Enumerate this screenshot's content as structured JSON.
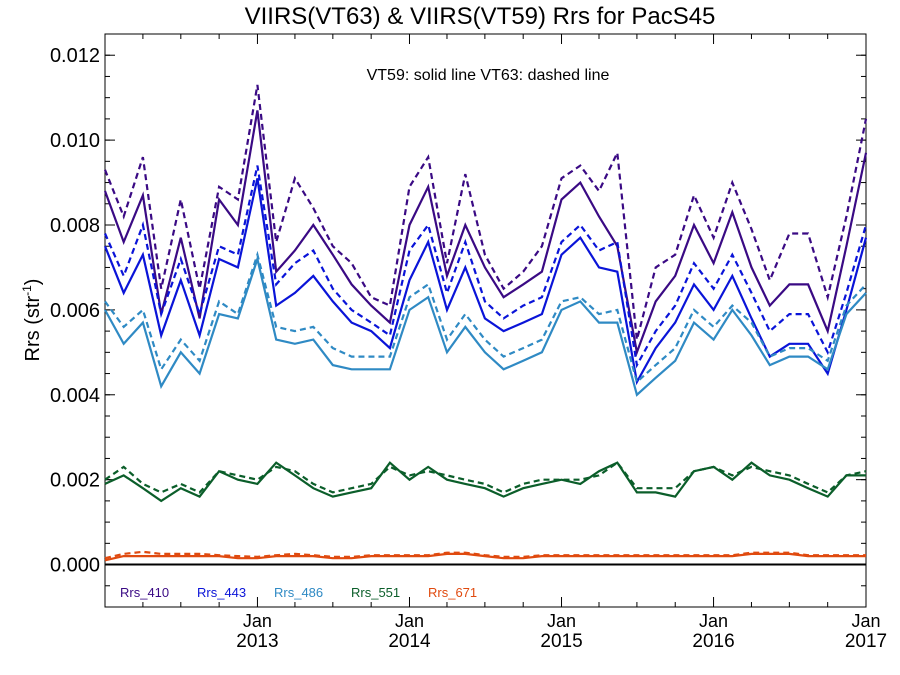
{
  "chart_data": {
    "type": "line",
    "title": "VIIRS(VT63) & VIIRS(VT59)  Rrs for PacS45",
    "ylabel": "Rrs (str",
    "ylabel_sup": "-1",
    "ylabel_close": ")",
    "ylim": [
      -0.001,
      0.0125
    ],
    "yticks": [
      0.0,
      0.002,
      0.004,
      0.006,
      0.008,
      0.01,
      0.012
    ],
    "ytick_labels": [
      "0.000",
      "0.002",
      "0.004",
      "0.006",
      "0.008",
      "0.010",
      "0.012"
    ],
    "xlim": [
      "2012-01-01",
      "2017-01-01"
    ],
    "xticks": [
      {
        "date": "2013-01-01",
        "month": "Jan",
        "year": "2013"
      },
      {
        "date": "2014-01-01",
        "month": "Jan",
        "year": "2014"
      },
      {
        "date": "2015-01-01",
        "month": "Jan",
        "year": "2015"
      },
      {
        "date": "2016-01-01",
        "month": "Jan",
        "year": "2016"
      },
      {
        "date": "2017-01-01",
        "month": "Jan",
        "year": "2017"
      }
    ],
    "annotation": "VT59: solid line   VT63: dashed line",
    "grid": false,
    "legend_position": "bottom-left",
    "x": [
      "2012-01-01",
      "2012-02-15",
      "2012-04-01",
      "2012-05-15",
      "2012-07-01",
      "2012-08-15",
      "2012-10-01",
      "2012-11-15",
      "2013-01-01",
      "2013-02-15",
      "2013-04-01",
      "2013-05-15",
      "2013-07-01",
      "2013-08-15",
      "2013-10-01",
      "2013-11-15",
      "2014-01-01",
      "2014-02-15",
      "2014-04-01",
      "2014-05-15",
      "2014-07-01",
      "2014-08-15",
      "2014-10-01",
      "2014-11-15",
      "2015-01-01",
      "2015-02-15",
      "2015-04-01",
      "2015-05-15",
      "2015-07-01",
      "2015-08-15",
      "2015-10-01",
      "2015-11-15",
      "2016-01-01",
      "2016-02-15",
      "2016-04-01",
      "2016-05-15",
      "2016-07-01",
      "2016-08-15",
      "2016-10-01",
      "2016-11-15",
      "2017-01-01"
    ],
    "series": [
      {
        "name": "Rrs_410",
        "color": "#3a0a84",
        "vt59": [
          0.0088,
          0.0076,
          0.0087,
          0.0059,
          0.0077,
          0.0058,
          0.0086,
          0.008,
          0.0107,
          0.0069,
          0.0074,
          0.008,
          0.0073,
          0.0066,
          0.0061,
          0.0057,
          0.008,
          0.0089,
          0.0068,
          0.008,
          0.007,
          0.0063,
          0.0066,
          0.0069,
          0.0086,
          0.009,
          0.0082,
          0.0075,
          0.005,
          0.0062,
          0.0068,
          0.008,
          0.0071,
          0.0083,
          0.007,
          0.0061,
          0.0066,
          0.0066,
          0.0055,
          0.0075,
          0.0097
        ],
        "vt63": [
          0.0093,
          0.0082,
          0.0096,
          0.0065,
          0.0086,
          0.0065,
          0.0089,
          0.0086,
          0.0113,
          0.0076,
          0.0091,
          0.0084,
          0.0075,
          0.0071,
          0.0063,
          0.0061,
          0.0089,
          0.0096,
          0.0071,
          0.0092,
          0.0073,
          0.0065,
          0.0069,
          0.0075,
          0.0091,
          0.0094,
          0.0088,
          0.0097,
          0.0053,
          0.007,
          0.0073,
          0.0087,
          0.0077,
          0.009,
          0.0079,
          0.0067,
          0.0078,
          0.0078,
          0.0063,
          0.0082,
          0.0105
        ]
      },
      {
        "name": "Rrs_443",
        "color": "#0a14d8",
        "vt59": [
          0.0075,
          0.0064,
          0.0073,
          0.0054,
          0.0067,
          0.0054,
          0.0072,
          0.007,
          0.0091,
          0.0061,
          0.0064,
          0.0068,
          0.0062,
          0.0057,
          0.0055,
          0.0051,
          0.0067,
          0.0076,
          0.006,
          0.007,
          0.0058,
          0.0055,
          0.0057,
          0.0059,
          0.0073,
          0.0077,
          0.007,
          0.0069,
          0.0043,
          0.0051,
          0.0057,
          0.0066,
          0.006,
          0.0068,
          0.0058,
          0.0049,
          0.0052,
          0.0052,
          0.0045,
          0.006,
          0.0077
        ],
        "vt63": [
          0.0078,
          0.0068,
          0.008,
          0.0059,
          0.0072,
          0.0059,
          0.0075,
          0.0073,
          0.0094,
          0.0066,
          0.0071,
          0.0074,
          0.0065,
          0.006,
          0.0057,
          0.0054,
          0.0074,
          0.008,
          0.0064,
          0.0076,
          0.0062,
          0.0058,
          0.0061,
          0.0063,
          0.0076,
          0.008,
          0.0074,
          0.0076,
          0.0047,
          0.0055,
          0.0061,
          0.0071,
          0.0065,
          0.0073,
          0.0064,
          0.0055,
          0.0059,
          0.0059,
          0.005,
          0.0064,
          0.008
        ]
      },
      {
        "name": "Rrs_486",
        "color": "#2f8ac4",
        "vt59": [
          0.006,
          0.0052,
          0.0057,
          0.0042,
          0.005,
          0.0045,
          0.0059,
          0.0058,
          0.0072,
          0.0053,
          0.0052,
          0.0053,
          0.0047,
          0.0046,
          0.0046,
          0.0046,
          0.006,
          0.0063,
          0.005,
          0.0056,
          0.005,
          0.0046,
          0.0048,
          0.005,
          0.006,
          0.0062,
          0.0057,
          0.0057,
          0.004,
          0.0044,
          0.0048,
          0.0057,
          0.0053,
          0.006,
          0.0054,
          0.0047,
          0.0049,
          0.0049,
          0.0046,
          0.0059,
          0.0064
        ],
        "vt63": [
          0.0062,
          0.0056,
          0.006,
          0.0046,
          0.0053,
          0.0048,
          0.0062,
          0.0059,
          0.0073,
          0.0056,
          0.0055,
          0.0056,
          0.0051,
          0.0049,
          0.0049,
          0.0049,
          0.0063,
          0.0066,
          0.0053,
          0.0059,
          0.0053,
          0.0049,
          0.0051,
          0.0053,
          0.0062,
          0.0063,
          0.0059,
          0.006,
          0.0043,
          0.0047,
          0.0051,
          0.006,
          0.0056,
          0.0061,
          0.0057,
          0.0049,
          0.0051,
          0.0051,
          0.0048,
          0.0061,
          0.0066
        ]
      },
      {
        "name": "Rrs_551",
        "color": "#0b5e2a",
        "vt59": [
          0.0019,
          0.0021,
          0.0018,
          0.0015,
          0.0018,
          0.0016,
          0.0022,
          0.002,
          0.0019,
          0.0024,
          0.0021,
          0.0018,
          0.0016,
          0.0017,
          0.0018,
          0.0024,
          0.002,
          0.0023,
          0.002,
          0.0019,
          0.0018,
          0.0016,
          0.0018,
          0.0019,
          0.002,
          0.0019,
          0.0022,
          0.0024,
          0.0017,
          0.0017,
          0.0016,
          0.0022,
          0.0023,
          0.002,
          0.0024,
          0.0021,
          0.002,
          0.0018,
          0.0016,
          0.0021,
          0.0021
        ],
        "vt63": [
          0.002,
          0.0023,
          0.0019,
          0.0017,
          0.0019,
          0.0017,
          0.0022,
          0.0021,
          0.002,
          0.0023,
          0.0022,
          0.0019,
          0.0017,
          0.0018,
          0.0019,
          0.0023,
          0.0021,
          0.0022,
          0.0021,
          0.002,
          0.0019,
          0.0017,
          0.0019,
          0.002,
          0.002,
          0.002,
          0.0021,
          0.0024,
          0.0018,
          0.0018,
          0.0018,
          0.0022,
          0.0023,
          0.0021,
          0.0023,
          0.0022,
          0.0021,
          0.0019,
          0.0017,
          0.0021,
          0.0022
        ]
      },
      {
        "name": "Rrs_671",
        "color": "#e04a0f",
        "vt59": [
          0.0001,
          0.0002,
          0.0002,
          0.0002,
          0.0002,
          0.0002,
          0.0002,
          0.00015,
          0.00015,
          0.0002,
          0.0002,
          0.0002,
          0.00015,
          0.00015,
          0.0002,
          0.0002,
          0.0002,
          0.0002,
          0.00025,
          0.00025,
          0.0002,
          0.00015,
          0.00015,
          0.0002,
          0.0002,
          0.0002,
          0.0002,
          0.0002,
          0.0002,
          0.0002,
          0.0002,
          0.0002,
          0.0002,
          0.0002,
          0.00025,
          0.00025,
          0.00025,
          0.0002,
          0.0002,
          0.0002,
          0.0002
        ],
        "vt63": [
          0.00015,
          0.00025,
          0.0003,
          0.00025,
          0.00025,
          0.00025,
          0.00022,
          0.0002,
          0.00018,
          0.00022,
          0.00025,
          0.00022,
          0.00018,
          0.00018,
          0.00022,
          0.00022,
          0.00022,
          0.00022,
          0.00028,
          0.00028,
          0.00022,
          0.00018,
          0.00018,
          0.00022,
          0.00022,
          0.00022,
          0.00022,
          0.00022,
          0.00022,
          0.00022,
          0.00022,
          0.00022,
          0.00022,
          0.00022,
          0.00028,
          0.00028,
          0.00028,
          0.00022,
          0.00022,
          0.00022,
          0.00022
        ]
      }
    ]
  }
}
